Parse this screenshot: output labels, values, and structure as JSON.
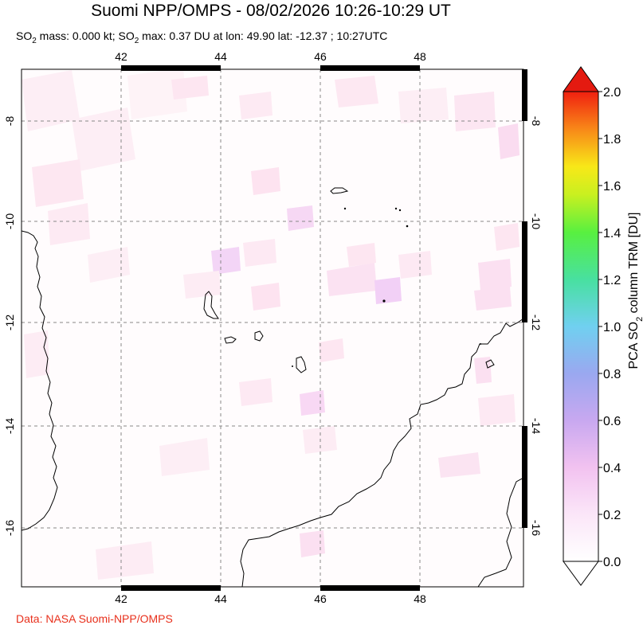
{
  "header": {
    "title": "Suomi NPP/OMPS - 08/02/2026 10:26-10:29 UT",
    "subtitle": {
      "mass_prefix": "SO",
      "mass_sub": "2",
      "mass_text": " mass: 0.000 kt; SO",
      "max_sub": "2",
      "max_text": " max: 0.37 DU at lon: 49.90 lat: -12.37 ; 10:27UTC"
    }
  },
  "map": {
    "lon_ticks": [
      "42",
      "44",
      "46",
      "48"
    ],
    "lat_ticks": [
      "-8",
      "-10",
      "-12",
      "-14",
      "-16"
    ],
    "lon_range": [
      40.0,
      50.2
    ],
    "lat_range": [
      -17.2,
      -6.9
    ]
  },
  "colorbar": {
    "label_prefix": "PCA SO",
    "label_sub": "2",
    "label_suffix": " column TRM [DU]",
    "ticks": [
      "2.0",
      "1.8",
      "1.6",
      "1.4",
      "1.2",
      "1.0",
      "0.8",
      "0.6",
      "0.4",
      "0.2",
      "0.0"
    ],
    "range": [
      0.0,
      2.0
    ],
    "colors": [
      "#ffffff",
      "#f7c8f5",
      "#b7a8f0",
      "#6fd0f0",
      "#40d080",
      "#70f020",
      "#f8f018",
      "#f8a018",
      "#f03010",
      "#e00000"
    ]
  },
  "footer": {
    "credit": "Data: NASA Suomi-NPP/OMPS"
  }
}
